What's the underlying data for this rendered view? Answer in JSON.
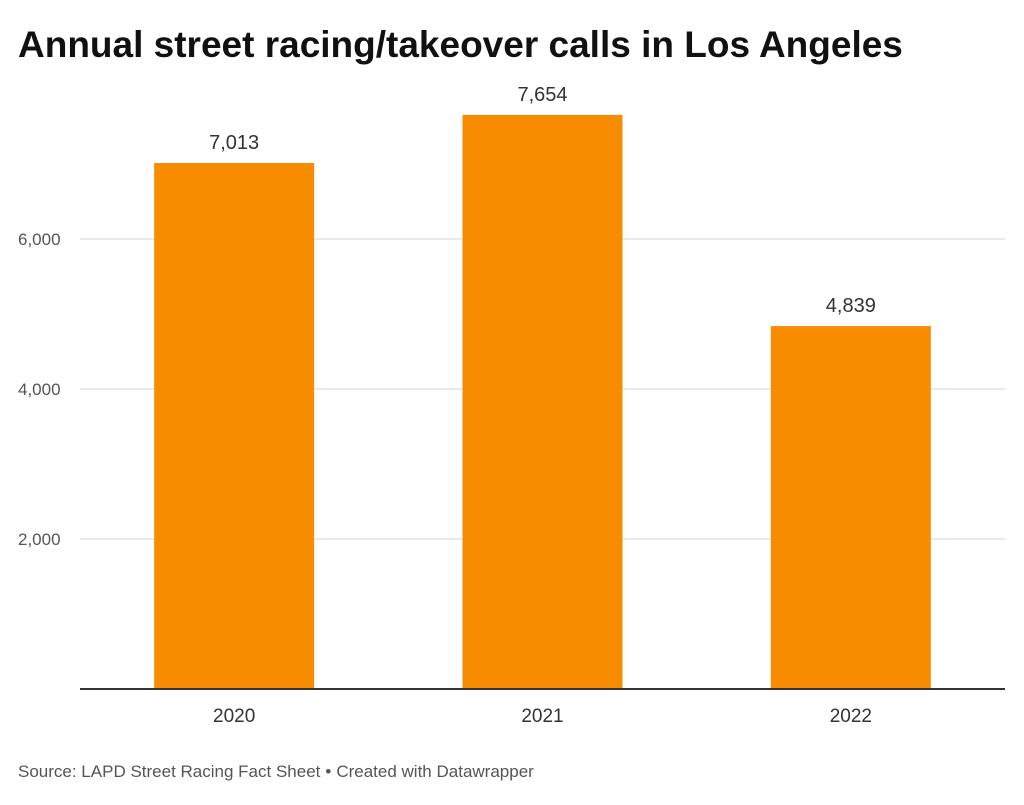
{
  "chart_data": {
    "type": "bar",
    "title": "Annual street racing/takeover calls in Los Angeles",
    "categories": [
      "2020",
      "2021",
      "2022"
    ],
    "values": [
      7013,
      7654,
      4839
    ],
    "value_labels": [
      "7,013",
      "7,654",
      "4,839"
    ],
    "y_ticks": [
      2000,
      4000,
      6000
    ],
    "y_tick_labels": [
      "2,000",
      "4,000",
      "6,000"
    ],
    "ylim": [
      0,
      8000
    ],
    "xlabel": "",
    "ylabel": "",
    "grid": true,
    "bar_color": "#f78c00"
  },
  "footer": {
    "source": "Source: LAPD Street Racing Fact Sheet",
    "separator": "•",
    "credit": "Created with Datawrapper"
  }
}
